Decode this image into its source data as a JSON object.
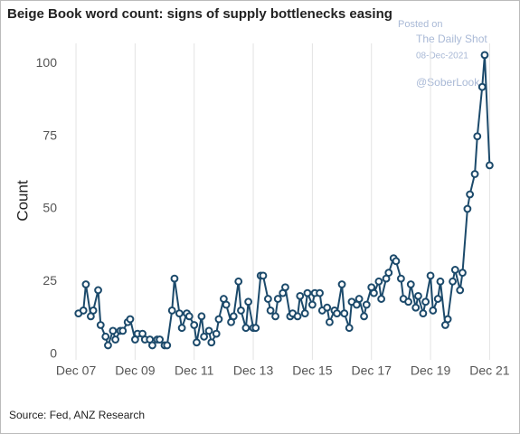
{
  "chart_data": {
    "type": "line",
    "title": "Beige Book word count: signs of supply bottlenecks easing",
    "y_label": "Count",
    "source": "Source: Fed, ANZ Research",
    "watermark": [
      "Posted on",
      "The Daily Shot",
      "08-Dec-2021",
      "@SoberLook"
    ],
    "x": [
      "2008-01",
      "2008-03",
      "2008-04",
      "2008-06",
      "2008-07",
      "2008-09",
      "2008-10",
      "2008-12",
      "2009-01",
      "2009-03",
      "2009-04",
      "2009-06",
      "2009-07",
      "2009-09",
      "2009-10",
      "2009-12",
      "2010-01",
      "2010-03",
      "2010-04",
      "2010-06",
      "2010-07",
      "2010-09",
      "2010-10",
      "2010-12",
      "2011-01",
      "2011-03",
      "2011-04",
      "2011-06",
      "2011-07",
      "2011-09",
      "2011-10",
      "2011-12",
      "2012-01",
      "2012-03",
      "2012-04",
      "2012-06",
      "2012-07",
      "2012-09",
      "2012-10",
      "2012-12",
      "2013-01",
      "2013-03",
      "2013-04",
      "2013-06",
      "2013-07",
      "2013-09",
      "2013-10",
      "2013-12",
      "2014-01",
      "2014-03",
      "2014-04",
      "2014-06",
      "2014-07",
      "2014-09",
      "2014-10",
      "2014-12",
      "2015-01",
      "2015-03",
      "2015-04",
      "2015-06",
      "2015-07",
      "2015-09",
      "2015-10",
      "2015-12",
      "2016-01",
      "2016-03",
      "2016-04",
      "2016-06",
      "2016-07",
      "2016-09",
      "2016-10",
      "2016-12",
      "2017-01",
      "2017-03",
      "2017-04",
      "2017-06",
      "2017-07",
      "2017-09",
      "2017-10",
      "2017-12",
      "2018-01",
      "2018-03",
      "2018-04",
      "2018-06",
      "2018-07",
      "2018-09",
      "2018-10",
      "2018-12",
      "2019-01",
      "2019-03",
      "2019-04",
      "2019-06",
      "2019-07",
      "2019-09",
      "2019-10",
      "2019-12",
      "2020-01",
      "2020-03",
      "2020-04",
      "2020-06",
      "2020-07",
      "2020-09",
      "2020-10",
      "2020-12",
      "2021-01",
      "2021-03",
      "2021-04",
      "2021-06",
      "2021-07",
      "2021-09",
      "2021-10",
      "2021-12"
    ],
    "series": [
      {
        "name": "Count",
        "color": "#1c4a6b",
        "values": [
          14,
          15,
          24,
          13,
          15,
          22,
          10,
          6,
          3,
          8,
          5,
          8,
          8,
          11,
          12,
          5,
          7,
          7,
          5,
          5,
          3,
          5,
          5,
          3,
          3,
          15,
          26,
          14,
          9,
          14,
          13,
          10,
          4,
          13,
          6,
          8,
          4,
          7,
          12,
          19,
          17,
          11,
          13,
          25,
          15,
          9,
          18,
          9,
          9,
          27,
          27,
          19,
          15,
          13,
          19,
          21,
          23,
          13,
          14,
          13,
          20,
          14,
          21,
          17,
          21,
          21,
          15,
          16,
          11,
          15,
          14,
          24,
          14,
          9,
          18,
          17,
          19,
          13,
          17,
          23,
          21,
          25,
          19,
          26,
          28,
          33,
          32,
          26,
          19,
          18,
          24,
          16,
          20,
          14,
          18,
          27,
          15,
          19,
          25,
          10,
          12,
          25,
          29,
          22,
          28,
          50,
          55,
          62,
          75,
          92,
          103,
          65
        ]
      }
    ],
    "xlim": [
      "2007-05",
      "2022-05"
    ],
    "xticks": [
      {
        "value": "2007-12",
        "label": "Dec 07"
      },
      {
        "value": "2009-12",
        "label": "Dec 09"
      },
      {
        "value": "2011-12",
        "label": "Dec 11"
      },
      {
        "value": "2013-12",
        "label": "Dec 13"
      },
      {
        "value": "2015-12",
        "label": "Dec 15"
      },
      {
        "value": "2017-12",
        "label": "Dec 17"
      },
      {
        "value": "2019-12",
        "label": "Dec 19"
      },
      {
        "value": "2021-12",
        "label": "Dec 21"
      }
    ],
    "ylim": [
      -2,
      107
    ],
    "yticks": [
      0,
      25,
      50,
      75,
      100
    ],
    "grid": "x"
  }
}
